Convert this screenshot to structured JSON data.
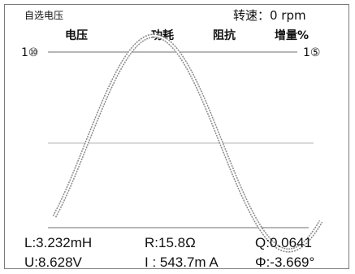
{
  "header": {
    "mode_label": "自选电压",
    "speed_label": "转速：0 rpm"
  },
  "tabs": [
    {
      "label": "电压"
    },
    {
      "label": "功耗"
    },
    {
      "label": "阻抗"
    },
    {
      "label": "增量%"
    }
  ],
  "scale": {
    "left": "1⑩",
    "right": "1⑤"
  },
  "measurements": {
    "inductance": "L:3.232mH",
    "resistance": "R:15.8Ω",
    "q_factor": "Q:0.0641",
    "voltage": "U:8.628V",
    "current": "I : 543.7m A",
    "phase": "Φ:-3.669°"
  },
  "colors": {
    "text": "#111111",
    "waveform": "#9a9a9a",
    "line": "#6f6f6f"
  }
}
